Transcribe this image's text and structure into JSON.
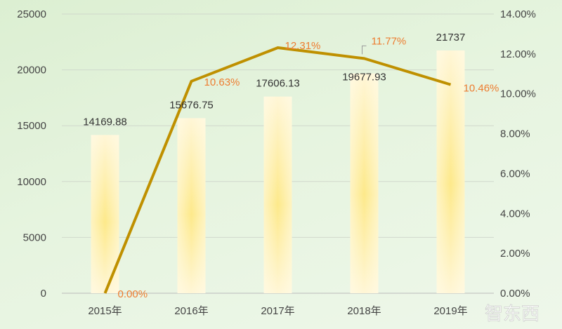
{
  "chart_data": {
    "type": "bar+line",
    "categories": [
      "2015年",
      "2016年",
      "2017年",
      "2018年",
      "2019年"
    ],
    "series": [
      {
        "name": "value",
        "type": "bar",
        "axis": "left",
        "values": [
          14169.88,
          15676.75,
          17606.13,
          19677.93,
          21737
        ],
        "labels": [
          "14169.88",
          "15676.75",
          "17606.13",
          "19677.93",
          "21737"
        ]
      },
      {
        "name": "growth",
        "type": "line",
        "axis": "right",
        "values": [
          0.0,
          10.63,
          12.31,
          11.77,
          10.46
        ],
        "labels": [
          "0.00%",
          "10.63%",
          "12.31%",
          "11.77%",
          "10.46%"
        ]
      }
    ],
    "left_axis": {
      "ylim": [
        0,
        25000
      ],
      "ticks": [
        "0",
        "5000",
        "10000",
        "15000",
        "20000",
        "25000"
      ]
    },
    "right_axis": {
      "ylim": [
        0,
        14
      ],
      "ticks": [
        "0.00%",
        "2.00%",
        "4.00%",
        "6.00%",
        "8.00%",
        "10.00%",
        "12.00%",
        "14.00%"
      ]
    },
    "grid": true,
    "colors": {
      "bar_center": "#fde98a",
      "bar_edge": "#fff6d6",
      "line": "#bf9000",
      "line_label": "#ed7d31",
      "grid": "#d0d8cc"
    },
    "watermark": "智东西"
  }
}
